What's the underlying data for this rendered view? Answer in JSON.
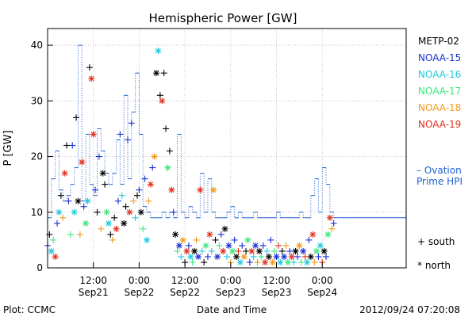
{
  "chart_data": {
    "type": "scatter",
    "title": "Hemispheric Power [GW]",
    "xlabel": "Date and Time",
    "ylabel": "P [GW]",
    "ylim": [
      0,
      43
    ],
    "yticks": [
      0,
      10,
      20,
      30,
      40
    ],
    "xlim_hours": [
      0,
      94
    ],
    "xticks": [
      {
        "hour": 12,
        "time": "12:00",
        "date": "Sep21"
      },
      {
        "hour": 24,
        "time": "0:00",
        "date": "Sep22"
      },
      {
        "hour": 36,
        "time": "12:00",
        "date": "Sep22"
      },
      {
        "hour": 48,
        "time": "0:00",
        "date": "Sep23"
      },
      {
        "hour": 60,
        "time": "12:00",
        "date": "Sep23"
      },
      {
        "hour": 72,
        "time": "0:00",
        "date": "Sep24"
      }
    ],
    "grid": true,
    "legend_position": "right",
    "series": [
      {
        "name": "METP-02",
        "color": "#000000"
      },
      {
        "name": "NOAA-15",
        "color": "#1a2fd6"
      },
      {
        "name": "NOAA-16",
        "color": "#20c8dc"
      },
      {
        "name": "NOAA-17",
        "color": "#3ce87a"
      },
      {
        "name": "NOAA-18",
        "color": "#f09a1c"
      },
      {
        "name": "NOAA-19",
        "color": "#e0301c"
      }
    ],
    "ovation": {
      "label_line1": "– Ovation",
      "label_line2": "Prime HPI",
      "color": "#1f5fd0",
      "steps": [
        [
          0,
          9
        ],
        [
          1,
          16
        ],
        [
          2,
          21
        ],
        [
          3,
          14
        ],
        [
          4,
          12
        ],
        [
          5,
          13
        ],
        [
          6,
          15
        ],
        [
          7,
          18
        ],
        [
          8,
          40
        ],
        [
          9,
          12
        ],
        [
          10,
          24
        ],
        [
          11,
          15
        ],
        [
          12,
          13
        ],
        [
          13,
          25
        ],
        [
          14,
          21
        ],
        [
          15,
          17
        ],
        [
          16,
          15
        ],
        [
          17,
          17
        ],
        [
          18,
          23
        ],
        [
          19,
          15
        ],
        [
          20,
          31
        ],
        [
          21,
          16
        ],
        [
          22,
          28
        ],
        [
          23,
          35
        ],
        [
          24,
          24
        ],
        [
          25,
          11
        ],
        [
          26,
          10
        ],
        [
          27,
          9
        ],
        [
          30,
          10
        ],
        [
          31,
          9
        ],
        [
          32,
          10
        ],
        [
          33,
          9
        ],
        [
          34,
          24
        ],
        [
          35,
          10
        ],
        [
          36,
          9
        ],
        [
          37,
          11
        ],
        [
          38,
          10
        ],
        [
          39,
          9
        ],
        [
          40,
          17
        ],
        [
          41,
          10
        ],
        [
          42,
          16
        ],
        [
          43,
          10
        ],
        [
          44,
          9
        ],
        [
          47,
          10
        ],
        [
          48,
          11
        ],
        [
          49,
          9
        ],
        [
          50,
          10
        ],
        [
          51,
          9
        ],
        [
          54,
          10
        ],
        [
          55,
          9
        ],
        [
          60,
          10
        ],
        [
          61,
          9
        ],
        [
          66,
          10
        ],
        [
          67,
          9
        ],
        [
          69,
          13
        ],
        [
          70,
          16
        ],
        [
          71,
          10
        ],
        [
          72,
          18
        ],
        [
          73,
          15
        ],
        [
          74,
          10
        ],
        [
          75,
          9
        ]
      ]
    },
    "points": [
      [
        0,
        4,
        1,
        "+"
      ],
      [
        0.5,
        6,
        0,
        "+"
      ],
      [
        1,
        3,
        2,
        "*"
      ],
      [
        1.5,
        5,
        3,
        "+"
      ],
      [
        2,
        2,
        5,
        "*"
      ],
      [
        2.5,
        8,
        1,
        "+"
      ],
      [
        3,
        10,
        2,
        "*"
      ],
      [
        3.5,
        13,
        0,
        "+"
      ],
      [
        4,
        9,
        4,
        "+"
      ],
      [
        4.5,
        17,
        5,
        "*"
      ],
      [
        5,
        22,
        0,
        "+"
      ],
      [
        5.5,
        12,
        1,
        "+"
      ],
      [
        6,
        6,
        3,
        "+"
      ],
      [
        6.5,
        22,
        1,
        "+"
      ],
      [
        7,
        10,
        2,
        "*"
      ],
      [
        7.5,
        27,
        0,
        "+"
      ],
      [
        8,
        12,
        0,
        "*"
      ],
      [
        8.5,
        6,
        4,
        "+"
      ],
      [
        9,
        19,
        5,
        "*"
      ],
      [
        9.5,
        11,
        1,
        "+"
      ],
      [
        10,
        8,
        3,
        "*"
      ],
      [
        10.5,
        12,
        2,
        "*"
      ],
      [
        11,
        36,
        0,
        "+"
      ],
      [
        11.5,
        34,
        5,
        "*"
      ],
      [
        12,
        24,
        5,
        "*"
      ],
      [
        12.5,
        14,
        1,
        "+"
      ],
      [
        13,
        10,
        0,
        "+"
      ],
      [
        13.5,
        20,
        1,
        "+"
      ],
      [
        14,
        7,
        4,
        "+"
      ],
      [
        14.5,
        17,
        0,
        "*"
      ],
      [
        15,
        15,
        0,
        "+"
      ],
      [
        15.5,
        10,
        3,
        "*"
      ],
      [
        16,
        8,
        2,
        "*"
      ],
      [
        16.5,
        6,
        0,
        "+"
      ],
      [
        17,
        5,
        4,
        "+"
      ],
      [
        17.5,
        9,
        0,
        "+"
      ],
      [
        18,
        7,
        5,
        "*"
      ],
      [
        18.5,
        12,
        1,
        "+"
      ],
      [
        19,
        24,
        1,
        "+"
      ],
      [
        19.5,
        13,
        2,
        "+"
      ],
      [
        20,
        8,
        0,
        "*"
      ],
      [
        20.5,
        11,
        0,
        "+"
      ],
      [
        21,
        23,
        1,
        "+"
      ],
      [
        21.5,
        10,
        5,
        "*"
      ],
      [
        22,
        26,
        1,
        "+"
      ],
      [
        22.5,
        12,
        4,
        "+"
      ],
      [
        23,
        9,
        2,
        "+"
      ],
      [
        23.5,
        13,
        0,
        "+"
      ],
      [
        24,
        14,
        1,
        "+"
      ],
      [
        24.5,
        10,
        0,
        "*"
      ],
      [
        25,
        7,
        3,
        "+"
      ],
      [
        25.5,
        16,
        1,
        "+"
      ],
      [
        26,
        5,
        2,
        "*"
      ],
      [
        26.5,
        12,
        4,
        "+"
      ],
      [
        27,
        15,
        5,
        "*"
      ],
      [
        27.5,
        18,
        1,
        "+"
      ],
      [
        28,
        20,
        4,
        "*"
      ],
      [
        28.5,
        35,
        0,
        "*"
      ],
      [
        29,
        39,
        2,
        "*"
      ],
      [
        29.5,
        31,
        0,
        "+"
      ],
      [
        30,
        30,
        5,
        "*"
      ],
      [
        30.5,
        35,
        0,
        "+"
      ],
      [
        31,
        25,
        0,
        "+"
      ],
      [
        31.5,
        18,
        3,
        "*"
      ],
      [
        32,
        21,
        0,
        "+"
      ],
      [
        32.5,
        14,
        5,
        "*"
      ],
      [
        33,
        10,
        1,
        "+"
      ],
      [
        33.5,
        6,
        0,
        "*"
      ],
      [
        34,
        3,
        3,
        "+"
      ],
      [
        34.5,
        4,
        1,
        "*"
      ],
      [
        35,
        2,
        2,
        "+"
      ],
      [
        35.5,
        5,
        4,
        "*"
      ],
      [
        36,
        1,
        0,
        "+"
      ],
      [
        36.5,
        3,
        5,
        "*"
      ],
      [
        37,
        4,
        1,
        "+"
      ],
      [
        37.5,
        2,
        2,
        "*"
      ],
      [
        38,
        1,
        3,
        "+"
      ],
      [
        38.5,
        3,
        0,
        "*"
      ],
      [
        39,
        5,
        4,
        "+"
      ],
      [
        39.5,
        2,
        1,
        "*"
      ],
      [
        40,
        14,
        5,
        "*"
      ],
      [
        40.5,
        3,
        2,
        "+"
      ],
      [
        41,
        1,
        0,
        "+"
      ],
      [
        41.5,
        4,
        3,
        "*"
      ],
      [
        42,
        2,
        1,
        "+"
      ],
      [
        42.5,
        6,
        5,
        "*"
      ],
      [
        43,
        3,
        2,
        "+"
      ],
      [
        43.5,
        14,
        4,
        "*"
      ],
      [
        44,
        5,
        0,
        "+"
      ],
      [
        44.5,
        2,
        1,
        "*"
      ],
      [
        45,
        4,
        3,
        "+"
      ],
      [
        45.5,
        6,
        1,
        "+"
      ],
      [
        46,
        3,
        5,
        "*"
      ],
      [
        46.5,
        7,
        0,
        "*"
      ],
      [
        47,
        2,
        2,
        "+"
      ],
      [
        47.5,
        4,
        1,
        "*"
      ],
      [
        48,
        1,
        4,
        "+"
      ],
      [
        48.5,
        3,
        3,
        "*"
      ],
      [
        49,
        5,
        1,
        "+"
      ],
      [
        49.5,
        2,
        0,
        "*"
      ],
      [
        50,
        3,
        5,
        "+"
      ],
      [
        50.5,
        1,
        2,
        "*"
      ],
      [
        51,
        4,
        1,
        "+"
      ],
      [
        51.5,
        2,
        4,
        "*"
      ],
      [
        52,
        3,
        0,
        "+"
      ],
      [
        52.5,
        5,
        3,
        "*"
      ],
      [
        53,
        1,
        1,
        "+"
      ],
      [
        53.5,
        3,
        5,
        "*"
      ],
      [
        54,
        2,
        2,
        "+"
      ],
      [
        54.5,
        4,
        1,
        "*"
      ],
      [
        55,
        1,
        4,
        "+"
      ],
      [
        55.5,
        3,
        0,
        "*"
      ],
      [
        56,
        2,
        3,
        "+"
      ],
      [
        56.5,
        4,
        1,
        "+"
      ],
      [
        57,
        1,
        5,
        "*"
      ],
      [
        57.5,
        3,
        2,
        "+"
      ],
      [
        58,
        2,
        0,
        "*"
      ],
      [
        58.5,
        5,
        1,
        "+"
      ],
      [
        59,
        1,
        4,
        "*"
      ],
      [
        59.5,
        3,
        3,
        "+"
      ],
      [
        60,
        2,
        1,
        "*"
      ],
      [
        60.5,
        4,
        5,
        "+"
      ],
      [
        61,
        1,
        2,
        "*"
      ],
      [
        61.5,
        3,
        0,
        "+"
      ],
      [
        62,
        2,
        1,
        "*"
      ],
      [
        62.5,
        4,
        4,
        "+"
      ],
      [
        63,
        1,
        3,
        "*"
      ],
      [
        63.5,
        3,
        1,
        "+"
      ],
      [
        64,
        2,
        5,
        "*"
      ],
      [
        64.5,
        1,
        2,
        "+"
      ],
      [
        65,
        3,
        0,
        "*"
      ],
      [
        65.5,
        2,
        1,
        "+"
      ],
      [
        66,
        4,
        4,
        "*"
      ],
      [
        66.5,
        1,
        3,
        "+"
      ],
      [
        67,
        3,
        1,
        "*"
      ],
      [
        67.5,
        2,
        5,
        "+"
      ],
      [
        68,
        1,
        2,
        "*"
      ],
      [
        68.5,
        5,
        1,
        "+"
      ],
      [
        69,
        2,
        0,
        "*"
      ],
      [
        69.5,
        6,
        5,
        "*"
      ],
      [
        70,
        1,
        4,
        "+"
      ],
      [
        70.5,
        3,
        3,
        "*"
      ],
      [
        71,
        2,
        1,
        "+"
      ],
      [
        71.5,
        4,
        2,
        "*"
      ],
      [
        72,
        1,
        5,
        "+"
      ],
      [
        72.5,
        3,
        0,
        "*"
      ],
      [
        73,
        2,
        1,
        "+"
      ],
      [
        73.5,
        6,
        3,
        "*"
      ],
      [
        74,
        9,
        5,
        "*"
      ],
      [
        74.5,
        7,
        4,
        "+"
      ],
      [
        75,
        8,
        1,
        "+"
      ]
    ],
    "symbol_legend": [
      {
        "symbol": "+",
        "label": "south"
      },
      {
        "symbol": "*",
        "label": "north"
      }
    ],
    "footer_left": "Plot: CCMC",
    "footer_right": "2012/09/24 07:20:08"
  }
}
